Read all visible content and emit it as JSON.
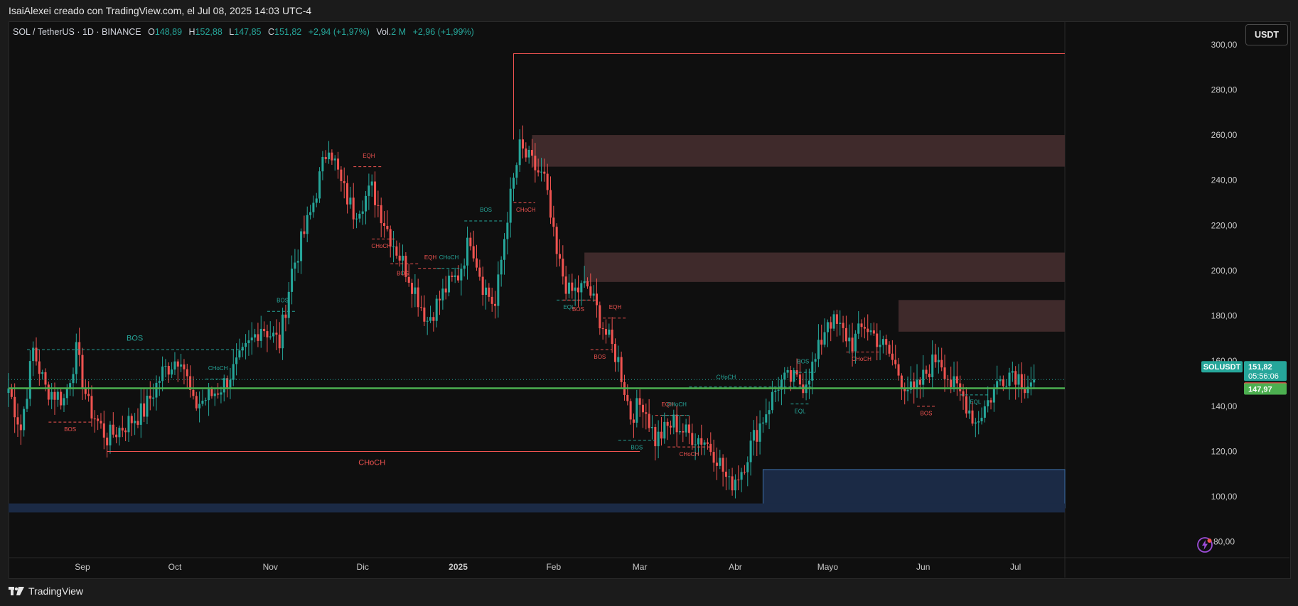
{
  "header": {
    "attribution": "IsaiAlexei creado con TradingView.com, el Jul 08, 2025 14:03 UTC-4"
  },
  "legend": {
    "symbol": "SOL / TetherUS · 1D · BINANCE",
    "open_label": "O",
    "open": "148,89",
    "high_label": "H",
    "high": "152,88",
    "low_label": "L",
    "low": "147,85",
    "close_label": "C",
    "close": "151,82",
    "change": "+2,94 (+1,97%)",
    "vol_label": "Vol.",
    "vol": "2 M",
    "vol_change": "+2,96 (+1,99%)"
  },
  "currency_button": "USDT",
  "footer": {
    "brand": "TradingView"
  },
  "colors": {
    "bull": "#26a69a",
    "bear": "#ef5350",
    "support_line": "#4caf50",
    "supply_zone": "#3f2a2b",
    "demand_zone": "#1b2a45"
  },
  "chart_data": {
    "type": "candlestick",
    "yticks": [
      "300,00",
      "280,00",
      "260,00",
      "240,00",
      "220,00",
      "200,00",
      "180,00",
      "160,00",
      "140,00",
      "120,00",
      "100,00",
      "80,00"
    ],
    "ytick_values": [
      300,
      280,
      260,
      240,
      220,
      200,
      180,
      160,
      140,
      120,
      100,
      80
    ],
    "ylim": [
      73,
      310
    ],
    "xticks": [
      {
        "label": "Sep",
        "day": 24,
        "bold": false
      },
      {
        "label": "Oct",
        "day": 54,
        "bold": false
      },
      {
        "label": "Nov",
        "day": 85,
        "bold": false
      },
      {
        "label": "Dic",
        "day": 115,
        "bold": false
      },
      {
        "label": "2025",
        "day": 146,
        "bold": true
      },
      {
        "label": "Feb",
        "day": 177,
        "bold": false
      },
      {
        "label": "Mar",
        "day": 205,
        "bold": false
      },
      {
        "label": "Abr",
        "day": 236,
        "bold": false
      },
      {
        "label": "Mayo",
        "day": 266,
        "bold": false
      },
      {
        "label": "Jun",
        "day": 297,
        "bold": false
      },
      {
        "label": "Jul",
        "day": 327,
        "bold": false
      }
    ],
    "xlim": [
      0,
      343
    ],
    "price_tags": [
      {
        "label": "SOLUSDT",
        "value": "151,82",
        "sub": "05:56:06",
        "color": "#26a69a"
      },
      {
        "value": "151,82",
        "color": "#ef5350"
      },
      {
        "value": "147,97",
        "color": "#4caf50"
      }
    ],
    "levels": {
      "support": 147.97,
      "last": 151.82
    },
    "zones": [
      {
        "type": "supply",
        "day_start": 170,
        "top": 260,
        "bottom": 246
      },
      {
        "type": "supply",
        "day_start": 187,
        "top": 208,
        "bottom": 195
      },
      {
        "type": "supply",
        "day_start": 289,
        "top": 187,
        "bottom": 173
      },
      {
        "type": "demand",
        "day_start": 245,
        "top": 112,
        "bottom": 95
      },
      {
        "type": "demand",
        "day_start": 0,
        "top": 97,
        "bottom": 93
      }
    ],
    "high_line": {
      "day_start": 164,
      "value": 296
    },
    "structures": [
      {
        "text": "BOS",
        "kind": "bull",
        "d1": 6,
        "d2": 77,
        "v": 165,
        "tx": 41,
        "tv": 169
      },
      {
        "text": "BOS",
        "kind": "bear",
        "d1": 13,
        "d2": 27,
        "v": 133,
        "tx": 20,
        "tv": 129
      },
      {
        "text": "CHoCH",
        "kind": "bull",
        "d1": 64,
        "d2": 74,
        "v": 152,
        "tx": 68,
        "tv": 156
      },
      {
        "text": "BOS",
        "kind": "bull",
        "d1": 84,
        "d2": 93,
        "v": 182,
        "tx": 89,
        "tv": 186
      },
      {
        "text": "EQH",
        "kind": "bear",
        "d1": 112,
        "d2": 121,
        "v": 246,
        "tx": 117,
        "tv": 250
      },
      {
        "text": "CHoCH",
        "kind": "bear",
        "d1": 118,
        "d2": 126,
        "v": 214,
        "tx": 121,
        "tv": 210
      },
      {
        "text": "BOS",
        "kind": "bear",
        "d1": 124,
        "d2": 133,
        "v": 203,
        "tx": 128,
        "tv": 198
      },
      {
        "text": "EQH",
        "kind": "bear",
        "d1": 133,
        "d2": 141,
        "v": 201,
        "tx": 137,
        "tv": 205
      },
      {
        "text": "CHoCH",
        "kind": "bull",
        "d1": 139,
        "d2": 147,
        "v": 201,
        "tx": 143,
        "tv": 205
      },
      {
        "text": "BOS",
        "kind": "bull",
        "d1": 148,
        "d2": 161,
        "v": 222,
        "tx": 155,
        "tv": 226
      },
      {
        "text": "CHoCH",
        "kind": "bear",
        "d1": 164,
        "d2": 171,
        "v": 230,
        "tx": 168,
        "tv": 226
      },
      {
        "text": "EQL",
        "kind": "bull",
        "d1": 178,
        "d2": 189,
        "v": 187,
        "tx": 182,
        "tv": 183
      },
      {
        "text": "BOS",
        "kind": "bear",
        "d1": 180,
        "d2": 191,
        "v": 187,
        "tx": 185,
        "tv": 182
      },
      {
        "text": "EQH",
        "kind": "bear",
        "d1": 193,
        "d2": 201,
        "v": 179,
        "tx": 197,
        "tv": 183
      },
      {
        "text": "BOS",
        "kind": "bear",
        "d1": 189,
        "d2": 196,
        "v": 165,
        "tx": 192,
        "tv": 161
      },
      {
        "text": "BOS",
        "kind": "bull",
        "d1": 198,
        "d2": 210,
        "v": 125,
        "tx": 204,
        "tv": 121
      },
      {
        "text": "EQH",
        "kind": "bear",
        "d1": 210,
        "d2": 220,
        "v": 136,
        "tx": 214,
        "tv": 140
      },
      {
        "text": "CHoCH",
        "kind": "bull",
        "d1": 212,
        "d2": 221,
        "v": 136,
        "tx": 217,
        "tv": 140
      },
      {
        "text": "CHoCH",
        "kind": "bear",
        "d1": 214,
        "d2": 228,
        "v": 122,
        "tx": 221,
        "tv": 118
      },
      {
        "text": "CHoCH",
        "kind": "bull",
        "d1": 221,
        "d2": 261,
        "v": 148.5,
        "tx": 233,
        "tv": 152
      },
      {
        "text": "BOS",
        "kind": "bull",
        "d1": 255,
        "d2": 262,
        "v": 155,
        "tx": 258,
        "tv": 159
      },
      {
        "text": "EQL",
        "kind": "bull",
        "d1": 254,
        "d2": 260,
        "v": 141,
        "tx": 257,
        "tv": 137
      },
      {
        "text": "CHoCH",
        "kind": "bear",
        "d1": 272,
        "d2": 283,
        "v": 164,
        "tx": 277,
        "tv": 160
      },
      {
        "text": "BOS",
        "kind": "bear",
        "d1": 295,
        "d2": 301,
        "v": 140,
        "tx": 298,
        "tv": 136
      },
      {
        "text": "EQL",
        "kind": "bull",
        "d1": 309,
        "d2": 318,
        "v": 145,
        "tx": 314,
        "tv": 141
      },
      {
        "text": "CHoCH",
        "kind": "bear",
        "d1": 32,
        "d2": 205,
        "v": 120,
        "tx": 118,
        "tv": 114,
        "solid": true
      }
    ],
    "anchors": [
      [
        0,
        148
      ],
      [
        4,
        130
      ],
      [
        8,
        165
      ],
      [
        12,
        148
      ],
      [
        18,
        143
      ],
      [
        22,
        164
      ],
      [
        26,
        140
      ],
      [
        32,
        126
      ],
      [
        38,
        132
      ],
      [
        44,
        138
      ],
      [
        50,
        155
      ],
      [
        56,
        163
      ],
      [
        60,
        140
      ],
      [
        66,
        145
      ],
      [
        70,
        150
      ],
      [
        76,
        162
      ],
      [
        82,
        176
      ],
      [
        88,
        168
      ],
      [
        92,
        200
      ],
      [
        98,
        225
      ],
      [
        104,
        257
      ],
      [
        108,
        238
      ],
      [
        112,
        226
      ],
      [
        118,
        236
      ],
      [
        124,
        215
      ],
      [
        130,
        198
      ],
      [
        136,
        178
      ],
      [
        142,
        192
      ],
      [
        146,
        198
      ],
      [
        150,
        215
      ],
      [
        154,
        194
      ],
      [
        158,
        184
      ],
      [
        162,
        225
      ],
      [
        166,
        254
      ],
      [
        170,
        247
      ],
      [
        174,
        240
      ],
      [
        178,
        206
      ],
      [
        182,
        190
      ],
      [
        188,
        193
      ],
      [
        194,
        172
      ],
      [
        198,
        160
      ],
      [
        202,
        136
      ],
      [
        206,
        142
      ],
      [
        210,
        125
      ],
      [
        216,
        133
      ],
      [
        220,
        128
      ],
      [
        226,
        125
      ],
      [
        230,
        118
      ],
      [
        234,
        105
      ],
      [
        238,
        112
      ],
      [
        242,
        126
      ],
      [
        246,
        138
      ],
      [
        250,
        150
      ],
      [
        254,
        152
      ],
      [
        258,
        150
      ],
      [
        262,
        160
      ],
      [
        266,
        179
      ],
      [
        270,
        174
      ],
      [
        274,
        168
      ],
      [
        278,
        176
      ],
      [
        282,
        170
      ],
      [
        286,
        163
      ],
      [
        290,
        152
      ],
      [
        294,
        145
      ],
      [
        298,
        155
      ],
      [
        302,
        163
      ],
      [
        306,
        150
      ],
      [
        310,
        144
      ],
      [
        314,
        133
      ],
      [
        318,
        142
      ],
      [
        322,
        152
      ],
      [
        326,
        156
      ],
      [
        330,
        150
      ],
      [
        333,
        151.8
      ]
    ]
  }
}
